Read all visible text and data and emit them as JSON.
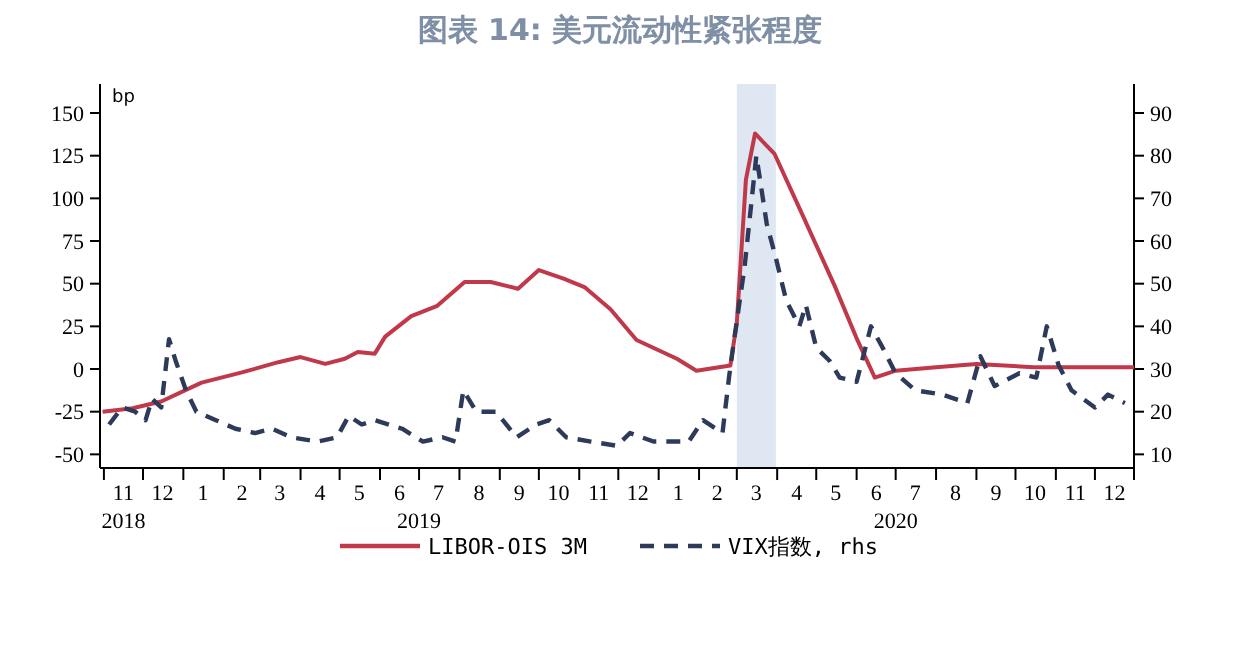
{
  "chart_data": {
    "type": "line",
    "title": "图表 14: 美元流动性紧张程度",
    "ylabel": "bp",
    "xlim": [
      "2018-10-29",
      "2020-12-31"
    ],
    "x2lim": [
      "2018-10-29",
      "2020-12-31"
    ],
    "xticks": [
      {
        "value": "2018-11-01",
        "label": null
      },
      {
        "value": "2018-11-16",
        "label": "11"
      },
      {
        "value": "2018-12-01",
        "label": null
      },
      {
        "value": "2018-12-16",
        "label": "12"
      },
      {
        "value": "2019-01-01",
        "label": null
      },
      {
        "value": "2019-01-16",
        "label": "1"
      },
      {
        "value": "2019-02-01",
        "label": null
      },
      {
        "value": "2019-02-15",
        "label": "2"
      },
      {
        "value": "2019-03-01",
        "label": null
      },
      {
        "value": "2019-03-16",
        "label": "3"
      },
      {
        "value": "2019-04-01",
        "label": null
      },
      {
        "value": "2019-04-16",
        "label": "4"
      },
      {
        "value": "2019-05-01",
        "label": null
      },
      {
        "value": "2019-05-16",
        "label": "5"
      },
      {
        "value": "2019-06-01",
        "label": null
      },
      {
        "value": "2019-06-16",
        "label": "6"
      },
      {
        "value": "2019-07-01",
        "label": null
      },
      {
        "value": "2019-07-16",
        "label": "7"
      },
      {
        "value": "2019-08-01",
        "label": null
      },
      {
        "value": "2019-08-16",
        "label": "8"
      },
      {
        "value": "2019-09-01",
        "label": null
      },
      {
        "value": "2019-09-16",
        "label": "9"
      },
      {
        "value": "2019-10-01",
        "label": null
      },
      {
        "value": "2019-10-16",
        "label": "10"
      },
      {
        "value": "2019-11-01",
        "label": null
      },
      {
        "value": "2019-11-16",
        "label": "11"
      },
      {
        "value": "2019-12-01",
        "label": null
      },
      {
        "value": "2019-12-16",
        "label": "12"
      },
      {
        "value": "2020-01-01",
        "label": null
      },
      {
        "value": "2020-01-16",
        "label": "1"
      },
      {
        "value": "2020-02-01",
        "label": null
      },
      {
        "value": "2020-02-15",
        "label": "2"
      },
      {
        "value": "2020-03-01",
        "label": null
      },
      {
        "value": "2020-03-16",
        "label": "3"
      },
      {
        "value": "2020-04-01",
        "label": null
      },
      {
        "value": "2020-04-16",
        "label": "4"
      },
      {
        "value": "2020-05-01",
        "label": null
      },
      {
        "value": "2020-05-16",
        "label": "5"
      },
      {
        "value": "2020-06-01",
        "label": null
      },
      {
        "value": "2020-06-16",
        "label": "6"
      },
      {
        "value": "2020-07-01",
        "label": null
      },
      {
        "value": "2020-07-16",
        "label": "7"
      },
      {
        "value": "2020-08-01",
        "label": null
      },
      {
        "value": "2020-08-16",
        "label": "8"
      },
      {
        "value": "2020-09-01",
        "label": null
      },
      {
        "value": "2020-09-16",
        "label": "9"
      },
      {
        "value": "2020-10-01",
        "label": null
      },
      {
        "value": "2020-10-16",
        "label": "10"
      },
      {
        "value": "2020-11-01",
        "label": null
      },
      {
        "value": "2020-11-16",
        "label": "11"
      },
      {
        "value": "2020-12-01",
        "label": null
      },
      {
        "value": "2020-12-16",
        "label": "12"
      },
      {
        "value": "2020-12-31",
        "label": null
      }
    ],
    "x2ticks": [
      {
        "value": "2018-11-16",
        "label": "2018"
      },
      {
        "value": "2019-07-01",
        "label": "2019"
      },
      {
        "value": "2020-07-01",
        "label": "2020"
      }
    ],
    "ylim": [
      -58,
      167
    ],
    "yticks": [
      -50,
      -25,
      0,
      25,
      50,
      75,
      100,
      125,
      150
    ],
    "y2lim": [
      6.8,
      96.8
    ],
    "y2ticks": [
      10,
      20,
      30,
      40,
      50,
      60,
      70,
      80,
      90
    ],
    "bands": [
      {
        "axis": "x",
        "from": "2020-03-01",
        "to": "2020-03-31",
        "color": "#dfe7f3"
      }
    ],
    "legend": "bottom",
    "series": [
      {
        "name": "LIBOR-OIS 3M",
        "color": "#c0394a",
        "line_style": "solid",
        "x": [
          "2018-10-31",
          "2018-11-23",
          "2018-12-15",
          "2019-01-15",
          "2019-02-15",
          "2019-03-15",
          "2019-04-01",
          "2019-04-20",
          "2019-05-05",
          "2019-05-15",
          "2019-05-28",
          "2019-06-05",
          "2019-06-25",
          "2019-07-15",
          "2019-08-05",
          "2019-08-25",
          "2019-09-15",
          "2019-10-01",
          "2019-10-20",
          "2019-11-05",
          "2019-11-25",
          "2019-12-15",
          "2020-01-15",
          "2020-01-30",
          "2020-02-25",
          "2020-03-01",
          "2020-03-08",
          "2020-03-15",
          "2020-03-30",
          "2020-04-20",
          "2020-05-15",
          "2020-06-01",
          "2020-06-15",
          "2020-07-01",
          "2020-08-01",
          "2020-09-01",
          "2020-10-15",
          "2020-11-20",
          "2020-12-31"
        ],
        "values": [
          -25,
          -23,
          -19,
          -8,
          -2,
          4,
          7,
          3,
          6,
          10,
          9,
          19,
          31,
          37,
          51,
          51,
          47,
          58,
          53,
          48,
          35,
          17,
          6,
          -1,
          2,
          27,
          111,
          138,
          126,
          91,
          49,
          18,
          -5,
          -1,
          1,
          3,
          1,
          1,
          1
        ]
      },
      {
        "name": "VIX指数, rhs",
        "color": "#2e3a59",
        "line_style": "dashed",
        "axis": "y2",
        "x": [
          "2018-11-05",
          "2018-11-15",
          "2018-11-25",
          "2018-12-03",
          "2018-12-08",
          "2018-12-15",
          "2018-12-21",
          "2018-12-26",
          "2019-01-03",
          "2019-01-11",
          "2019-01-26",
          "2019-02-10",
          "2019-02-25",
          "2019-03-10",
          "2019-03-25",
          "2019-04-14",
          "2019-04-29",
          "2019-05-08",
          "2019-05-18",
          "2019-05-28",
          "2019-06-18",
          "2019-07-04",
          "2019-07-19",
          "2019-07-29",
          "2019-08-04",
          "2019-08-14",
          "2019-08-29",
          "2019-09-14",
          "2019-09-29",
          "2019-10-09",
          "2019-10-22",
          "2019-11-10",
          "2019-11-30",
          "2019-12-10",
          "2019-12-28",
          "2020-01-24",
          "2020-02-04",
          "2020-02-19",
          "2020-02-24",
          "2020-02-28",
          "2020-03-07",
          "2020-03-16",
          "2020-03-24",
          "2020-03-31",
          "2020-04-08",
          "2020-04-18",
          "2020-04-23",
          "2020-05-01",
          "2020-05-11",
          "2020-05-19",
          "2020-06-01",
          "2020-06-12",
          "2020-06-21",
          "2020-07-01",
          "2020-07-16",
          "2020-08-06",
          "2020-08-25",
          "2020-09-04",
          "2020-09-15",
          "2020-10-04",
          "2020-10-17",
          "2020-10-25",
          "2020-11-03",
          "2020-11-13",
          "2020-12-01",
          "2020-12-11",
          "2020-12-24"
        ],
        "values": [
          17,
          21,
          20,
          18,
          23,
          21,
          37,
          32,
          25,
          20,
          18,
          16,
          15,
          16,
          14,
          13,
          14,
          19,
          17,
          18,
          16,
          13,
          14,
          13,
          25,
          20,
          20,
          14,
          17,
          18,
          14,
          13,
          12,
          15,
          13,
          13,
          18,
          15,
          28,
          37,
          54,
          80,
          64,
          56,
          46,
          40,
          45,
          35,
          32,
          28,
          27,
          40,
          35,
          29,
          25,
          24,
          22,
          33,
          26,
          29,
          28,
          40,
          31,
          25,
          21,
          24,
          22
        ]
      }
    ]
  }
}
